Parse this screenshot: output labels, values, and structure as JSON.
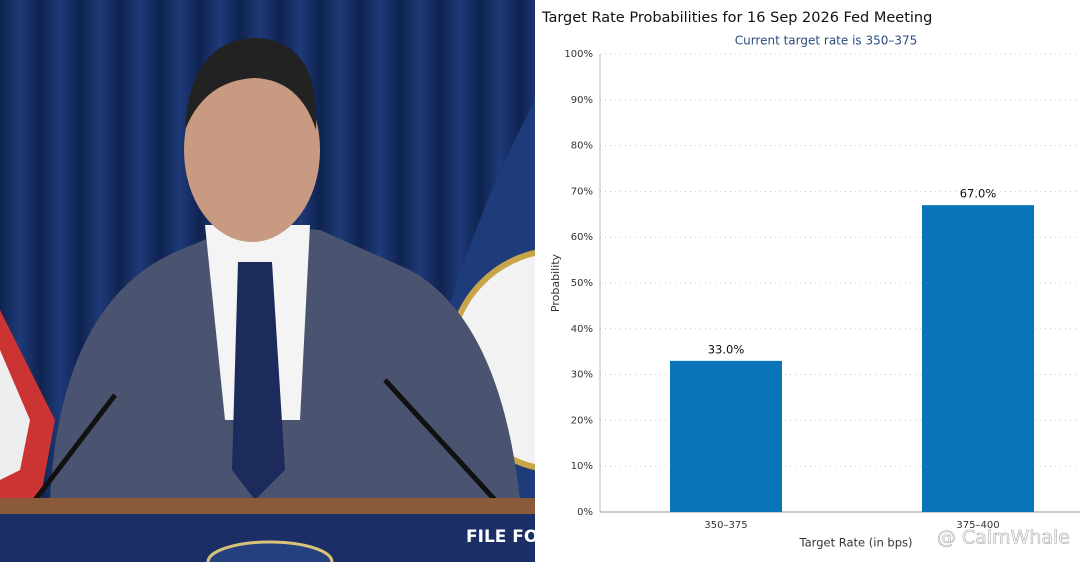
{
  "chart_data": {
    "type": "bar",
    "title": "Target Rate Probabilities for 16 Sep 2026 Fed Meeting",
    "subtitle": "Current target rate is 350–375",
    "x_label": "Target Rate (in bps)",
    "y_label": "Probability",
    "categories": [
      "350–375",
      "375–400"
    ],
    "values": [
      33.0,
      67.0
    ],
    "value_labels": [
      "33.0%",
      "67.0%"
    ],
    "color": "#0a74b8",
    "ylim": [
      0,
      100
    ],
    "yticks": [
      {
        "value": 0,
        "label": "0%"
      },
      {
        "value": 10,
        "label": "10%"
      },
      {
        "value": 20,
        "label": "20%"
      },
      {
        "value": 30,
        "label": "30%"
      },
      {
        "value": 40,
        "label": "40%"
      },
      {
        "value": 50,
        "label": "50%"
      },
      {
        "value": 60,
        "label": "60%"
      },
      {
        "value": 70,
        "label": "70%"
      },
      {
        "value": 80,
        "label": "80%"
      },
      {
        "value": 90,
        "label": "90%"
      },
      {
        "value": 100,
        "label": "100%"
      }
    ],
    "grid": true
  },
  "photo": {
    "podium_text": "FILE FO"
  },
  "watermark": "@ CalmWhale"
}
